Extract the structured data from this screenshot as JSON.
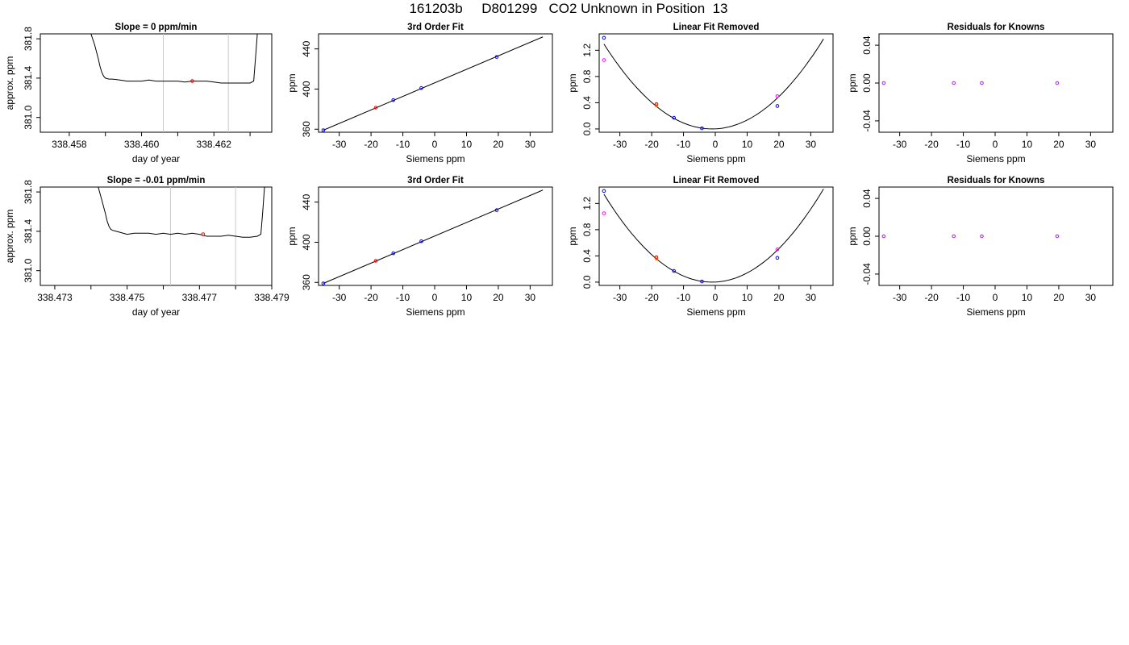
{
  "page": {
    "title": "161203b     D801299   CO2 Unknown in Position  13"
  },
  "colors": {
    "line": "#000000",
    "grid": "#c8c8c8",
    "blue": "#0000ff",
    "red": "#ff0000",
    "orange": "#ff8c00",
    "magenta": "#ff00ff",
    "purple": "#a020f0"
  },
  "chart_data": [
    {
      "type": "line",
      "title": "Slope =  0  ppm/min",
      "xlabel": "day of year",
      "ylabel": "approx. ppm",
      "xlim": [
        338.4572,
        338.4636
      ],
      "ylim": [
        380.85,
        381.85
      ],
      "xticks": [
        338.458,
        338.46,
        338.462
      ],
      "xtick_labels": [
        "338.458",
        "338.460",
        "338.462"
      ],
      "yticks": [
        381.0,
        381.4,
        381.8
      ],
      "ytick_labels": [
        "381.0",
        "381.4",
        "381.8"
      ],
      "vlines": [
        338.4606,
        338.4624
      ],
      "series": [
        {
          "x": [
            338.4586,
            338.4587,
            338.4588,
            338.45885,
            338.4589,
            338.45895,
            338.459,
            338.4591,
            338.4592,
            338.4594,
            338.4596,
            338.4598,
            338.46,
            338.4602,
            338.4604,
            338.4606,
            338.4608,
            338.461,
            338.4612,
            338.4614,
            338.4616,
            338.4618,
            338.462,
            338.4622,
            338.4624,
            338.4626,
            338.4628,
            338.463,
            338.4631,
            338.46315,
            338.4632
          ],
          "y": [
            381.85,
            381.74,
            381.6,
            381.52,
            381.46,
            381.42,
            381.4,
            381.39,
            381.39,
            381.38,
            381.37,
            381.37,
            381.37,
            381.38,
            381.37,
            381.37,
            381.37,
            381.37,
            381.36,
            381.37,
            381.37,
            381.37,
            381.36,
            381.35,
            381.35,
            381.35,
            381.35,
            381.35,
            381.37,
            381.6,
            381.85
          ]
        }
      ],
      "points": [
        {
          "x": 338.4614,
          "y": 381.37,
          "color": "red"
        }
      ]
    },
    {
      "type": "scatter",
      "title": "3rd Order Fit",
      "xlabel": "Siemens ppm",
      "ylabel": "ppm",
      "xlim": [
        -36.5,
        37
      ],
      "ylim": [
        357,
        455
      ],
      "xticks": [
        -30,
        -20,
        -10,
        0,
        10,
        20,
        30
      ],
      "xtick_labels": [
        "-30",
        "-20",
        "-10",
        "0",
        "10",
        "20",
        "30"
      ],
      "yticks": [
        360,
        400,
        440
      ],
      "ytick_labels": [
        "360",
        "400",
        "440"
      ],
      "fit_line": {
        "x": [
          -35,
          34
        ],
        "y": [
          359,
          452
        ]
      },
      "points": [
        {
          "x": -35,
          "y": 359,
          "color": "blue"
        },
        {
          "x": -18.5,
          "y": 381.5,
          "color": "red"
        },
        {
          "x": -13,
          "y": 389,
          "color": "blue"
        },
        {
          "x": -4.2,
          "y": 401,
          "color": "blue"
        },
        {
          "x": 19.5,
          "y": 432,
          "color": "blue"
        }
      ]
    },
    {
      "type": "scatter",
      "title": "Linear Fit Removed",
      "xlabel": "Siemens ppm",
      "ylabel": "ppm",
      "xlim": [
        -36.5,
        37
      ],
      "ylim": [
        -0.05,
        1.45
      ],
      "xticks": [
        -30,
        -20,
        -10,
        0,
        10,
        20,
        30
      ],
      "xtick_labels": [
        "-30",
        "-20",
        "-10",
        "0",
        "10",
        "20",
        "30"
      ],
      "yticks": [
        0.0,
        0.4,
        0.8,
        1.2
      ],
      "ytick_labels": [
        "0.0",
        "0.4",
        "0.8",
        "1.2"
      ],
      "curve": {
        "a": 0.00112,
        "x0": -1.0,
        "c": 0.0,
        "xmin": -35,
        "xmax": 34
      },
      "points": [
        {
          "x": -35,
          "y": 1.39,
          "color": "blue"
        },
        {
          "x": -35,
          "y": 1.05,
          "color": "magenta"
        },
        {
          "x": -18.5,
          "y": 0.36,
          "color": "orange"
        },
        {
          "x": -18.5,
          "y": 0.38,
          "color": "red"
        },
        {
          "x": -13,
          "y": 0.17,
          "color": "blue"
        },
        {
          "x": -4.2,
          "y": 0.01,
          "color": "blue"
        },
        {
          "x": 19.5,
          "y": 0.35,
          "color": "blue"
        },
        {
          "x": 19.5,
          "y": 0.5,
          "color": "magenta"
        }
      ]
    },
    {
      "type": "scatter",
      "title": "Residuals for Knowns",
      "xlabel": "Siemens ppm",
      "ylabel": "ppm",
      "xlim": [
        -36.5,
        37
      ],
      "ylim": [
        -0.052,
        0.052
      ],
      "xticks": [
        -30,
        -20,
        -10,
        0,
        10,
        20,
        30
      ],
      "xtick_labels": [
        "-30",
        "-20",
        "-10",
        "0",
        "10",
        "20",
        "30"
      ],
      "yticks": [
        -0.04,
        0.0,
        0.04
      ],
      "ytick_labels": [
        "-0.04",
        "0.00",
        "0.04"
      ],
      "points": [
        {
          "x": -35,
          "y": 0.0,
          "color": "purple"
        },
        {
          "x": -13,
          "y": 0.0,
          "color": "purple"
        },
        {
          "x": -4.2,
          "y": 0.0,
          "color": "purple"
        },
        {
          "x": 19.5,
          "y": 0.0,
          "color": "purple"
        }
      ]
    },
    {
      "type": "line",
      "title": "Slope =  -0.01  ppm/min",
      "xlabel": "day of year",
      "ylabel": "approx. ppm",
      "xlim": [
        338.4726,
        338.479
      ],
      "ylim": [
        380.85,
        381.85
      ],
      "xticks": [
        338.473,
        338.475,
        338.477,
        338.479
      ],
      "xtick_labels": [
        "338.473",
        "338.475",
        "338.477",
        "338.479"
      ],
      "yticks": [
        381.0,
        381.4,
        381.8
      ],
      "ytick_labels": [
        "381.0",
        "381.4",
        "381.8"
      ],
      "vlines": [
        338.4762,
        338.478
      ],
      "series": [
        {
          "x": [
            338.4742,
            338.4743,
            338.4744,
            338.47445,
            338.4745,
            338.47455,
            338.4746,
            338.4747,
            338.4748,
            338.475,
            338.4752,
            338.4754,
            338.4756,
            338.4758,
            338.476,
            338.4762,
            338.4764,
            338.4766,
            338.4768,
            338.477,
            338.4772,
            338.4774,
            338.4776,
            338.4778,
            338.478,
            338.4782,
            338.4784,
            338.4786,
            338.4787,
            338.47875,
            338.4788
          ],
          "y": [
            381.85,
            381.72,
            381.58,
            381.5,
            381.45,
            381.42,
            381.41,
            381.4,
            381.39,
            381.37,
            381.38,
            381.38,
            381.38,
            381.37,
            381.38,
            381.37,
            381.38,
            381.37,
            381.38,
            381.37,
            381.35,
            381.35,
            381.35,
            381.36,
            381.35,
            381.34,
            381.34,
            381.35,
            381.37,
            381.6,
            381.85
          ]
        }
      ],
      "points": [
        {
          "x": 338.4771,
          "y": 381.37,
          "color": "red"
        }
      ]
    },
    {
      "type": "scatter",
      "title": "3rd Order Fit",
      "xlabel": "Siemens ppm",
      "ylabel": "ppm",
      "xlim": [
        -36.5,
        37
      ],
      "ylim": [
        357,
        455
      ],
      "xticks": [
        -30,
        -20,
        -10,
        0,
        10,
        20,
        30
      ],
      "xtick_labels": [
        "-30",
        "-20",
        "-10",
        "0",
        "10",
        "20",
        "30"
      ],
      "yticks": [
        360,
        400,
        440
      ],
      "ytick_labels": [
        "360",
        "400",
        "440"
      ],
      "fit_line": {
        "x": [
          -35,
          34
        ],
        "y": [
          359,
          452
        ]
      },
      "points": [
        {
          "x": -35,
          "y": 359,
          "color": "blue"
        },
        {
          "x": -18.5,
          "y": 381.5,
          "color": "red"
        },
        {
          "x": -13,
          "y": 389,
          "color": "blue"
        },
        {
          "x": -4.2,
          "y": 401,
          "color": "blue"
        },
        {
          "x": 19.5,
          "y": 432,
          "color": "blue"
        }
      ]
    },
    {
      "type": "scatter",
      "title": "Linear Fit Removed",
      "xlabel": "Siemens ppm",
      "ylabel": "ppm",
      "xlim": [
        -36.5,
        37
      ],
      "ylim": [
        -0.05,
        1.45
      ],
      "xticks": [
        -30,
        -20,
        -10,
        0,
        10,
        20,
        30
      ],
      "xtick_labels": [
        "-30",
        "-20",
        "-10",
        "0",
        "10",
        "20",
        "30"
      ],
      "yticks": [
        0.0,
        0.4,
        0.8,
        1.2
      ],
      "ytick_labels": [
        "0.0",
        "0.4",
        "0.8",
        "1.2"
      ],
      "curve": {
        "a": 0.00116,
        "x0": -1.0,
        "c": 0.0,
        "xmin": -35,
        "xmax": 34
      },
      "points": [
        {
          "x": -35,
          "y": 1.39,
          "color": "blue"
        },
        {
          "x": -35,
          "y": 1.05,
          "color": "magenta"
        },
        {
          "x": -18.5,
          "y": 0.36,
          "color": "orange"
        },
        {
          "x": -18.5,
          "y": 0.38,
          "color": "red"
        },
        {
          "x": -13,
          "y": 0.17,
          "color": "blue"
        },
        {
          "x": -4.2,
          "y": 0.01,
          "color": "blue"
        },
        {
          "x": 19.5,
          "y": 0.37,
          "color": "blue"
        },
        {
          "x": 19.5,
          "y": 0.5,
          "color": "magenta"
        }
      ]
    },
    {
      "type": "scatter",
      "title": "Residuals for Knowns",
      "xlabel": "Siemens ppm",
      "ylabel": "ppm",
      "xlim": [
        -36.5,
        37
      ],
      "ylim": [
        -0.052,
        0.052
      ],
      "xticks": [
        -30,
        -20,
        -10,
        0,
        10,
        20,
        30
      ],
      "xtick_labels": [
        "-30",
        "-20",
        "-10",
        "0",
        "10",
        "20",
        "30"
      ],
      "yticks": [
        -0.04,
        0.0,
        0.04
      ],
      "ytick_labels": [
        "-0.04",
        "0.00",
        "0.04"
      ],
      "points": [
        {
          "x": -35,
          "y": 0.0,
          "color": "purple"
        },
        {
          "x": -13,
          "y": 0.0,
          "color": "purple"
        },
        {
          "x": -4.2,
          "y": 0.0,
          "color": "purple"
        },
        {
          "x": 19.5,
          "y": 0.0,
          "color": "purple"
        }
      ]
    }
  ]
}
